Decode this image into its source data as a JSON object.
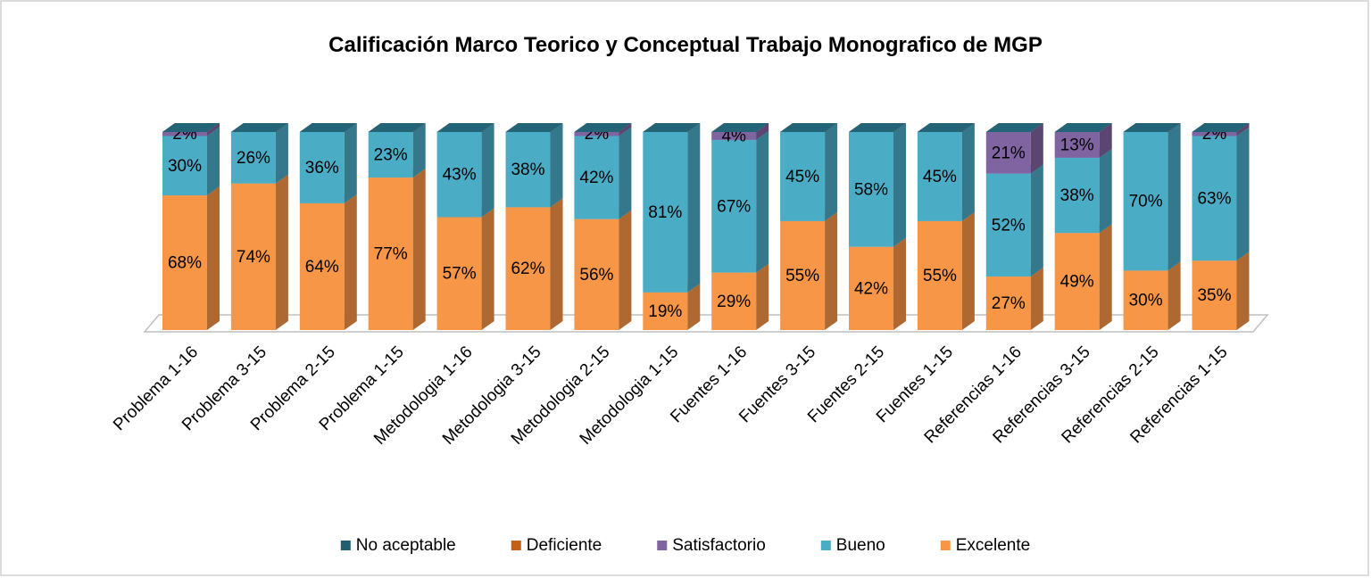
{
  "chart_data": {
    "type": "bar3d_stacked",
    "title": "Calificación Marco Teorico y Conceptual Trabajo Monografico de MGP",
    "categories": [
      "Problema 1-16",
      "Problema 3-15",
      "Problema 2-15",
      "Problema 1-15",
      "Metodologia 1-16",
      "Metodologia 3-15",
      "Metodologia 2-15",
      "Metodologia 1-15",
      "Fuentes 1-16",
      "Fuentes 3-15",
      "Fuentes 2-15",
      "Fuentes 1-15",
      "Referencias 1-16",
      "Referencias 3-15",
      "Referencias 2-15",
      "Referencias 1-15"
    ],
    "ylim": [
      0,
      100
    ],
    "legend": "bottom",
    "series": [
      {
        "name": "No aceptable",
        "color": "#215f70",
        "values": [
          0,
          0,
          0,
          0,
          0,
          0,
          0,
          0,
          0,
          0,
          0,
          0,
          0,
          0,
          0,
          0
        ]
      },
      {
        "name": "Deficiente",
        "color": "#c0601a",
        "values": [
          0,
          0,
          0,
          0,
          0,
          0,
          0,
          0,
          0,
          0,
          0,
          0,
          0,
          0,
          0,
          0
        ]
      },
      {
        "name": "Satisfactorio",
        "color": "#8064a2",
        "values": [
          2,
          0,
          0,
          0,
          0,
          0,
          2,
          0,
          4,
          0,
          0,
          0,
          21,
          13,
          0,
          2
        ],
        "value_labels": [
          "2%",
          null,
          null,
          null,
          null,
          null,
          "2%",
          null,
          "4%",
          null,
          null,
          null,
          "21%",
          "13%",
          null,
          "2%"
        ]
      },
      {
        "name": "Bueno",
        "color": "#4bacc6",
        "values": [
          30,
          26,
          36,
          23,
          43,
          38,
          42,
          81,
          67,
          45,
          58,
          45,
          52,
          38,
          70,
          63
        ],
        "value_labels": [
          "30%",
          "26%",
          "36%",
          "23%",
          "43%",
          "38%",
          "42%",
          "81%",
          "67%",
          "45%",
          "58%",
          "45%",
          "52%",
          "38%",
          "70%",
          "63%"
        ]
      },
      {
        "name": "Excelente",
        "color": "#f79646",
        "values": [
          68,
          74,
          64,
          77,
          57,
          62,
          56,
          19,
          29,
          55,
          42,
          55,
          27,
          49,
          30,
          35
        ],
        "value_labels": [
          "68%",
          "74%",
          "64%",
          "77%",
          "57%",
          "62%",
          "56%",
          "19%",
          "29%",
          "55%",
          "42%",
          "55%",
          "27%",
          "49%",
          "30%",
          "35%"
        ]
      }
    ]
  }
}
